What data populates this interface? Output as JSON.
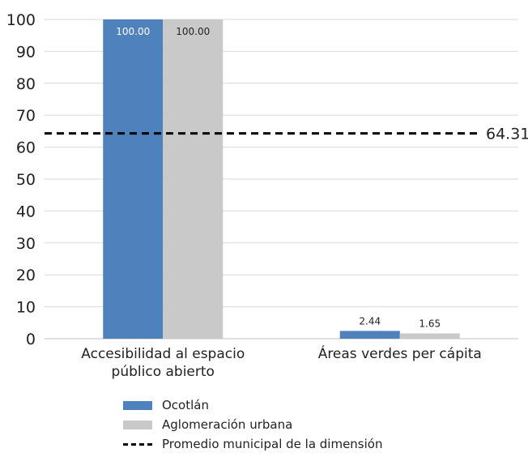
{
  "chart_data": {
    "type": "bar",
    "categories": [
      "Accesibilidad al espacio público abierto",
      "Áreas verdes per cápita"
    ],
    "category_lines": [
      [
        "Accesibilidad al espacio",
        "público abierto"
      ],
      [
        "Áreas verdes per cápita"
      ]
    ],
    "series": [
      {
        "name": "Ocotlán",
        "values": [
          100.0,
          2.44
        ],
        "labels": [
          "100.00",
          "2.44"
        ],
        "color": "#4f81bd"
      },
      {
        "name": "Aglomeración urbana",
        "values": [
          100.0,
          1.65
        ],
        "labels": [
          "100.00",
          "1.65"
        ],
        "color": "#c9c9c9"
      }
    ],
    "reference_line": {
      "name": "Promedio municipal de la dimensión",
      "value": 64.31,
      "label": "64.31",
      "color": "#000000"
    },
    "yticks": [
      "0",
      "10",
      "20",
      "30",
      "40",
      "50",
      "60",
      "70",
      "80",
      "90",
      "100"
    ],
    "ylim": [
      0,
      100
    ],
    "grid": true,
    "legend_position": "bottom",
    "title": "",
    "xlabel": "",
    "ylabel": ""
  }
}
